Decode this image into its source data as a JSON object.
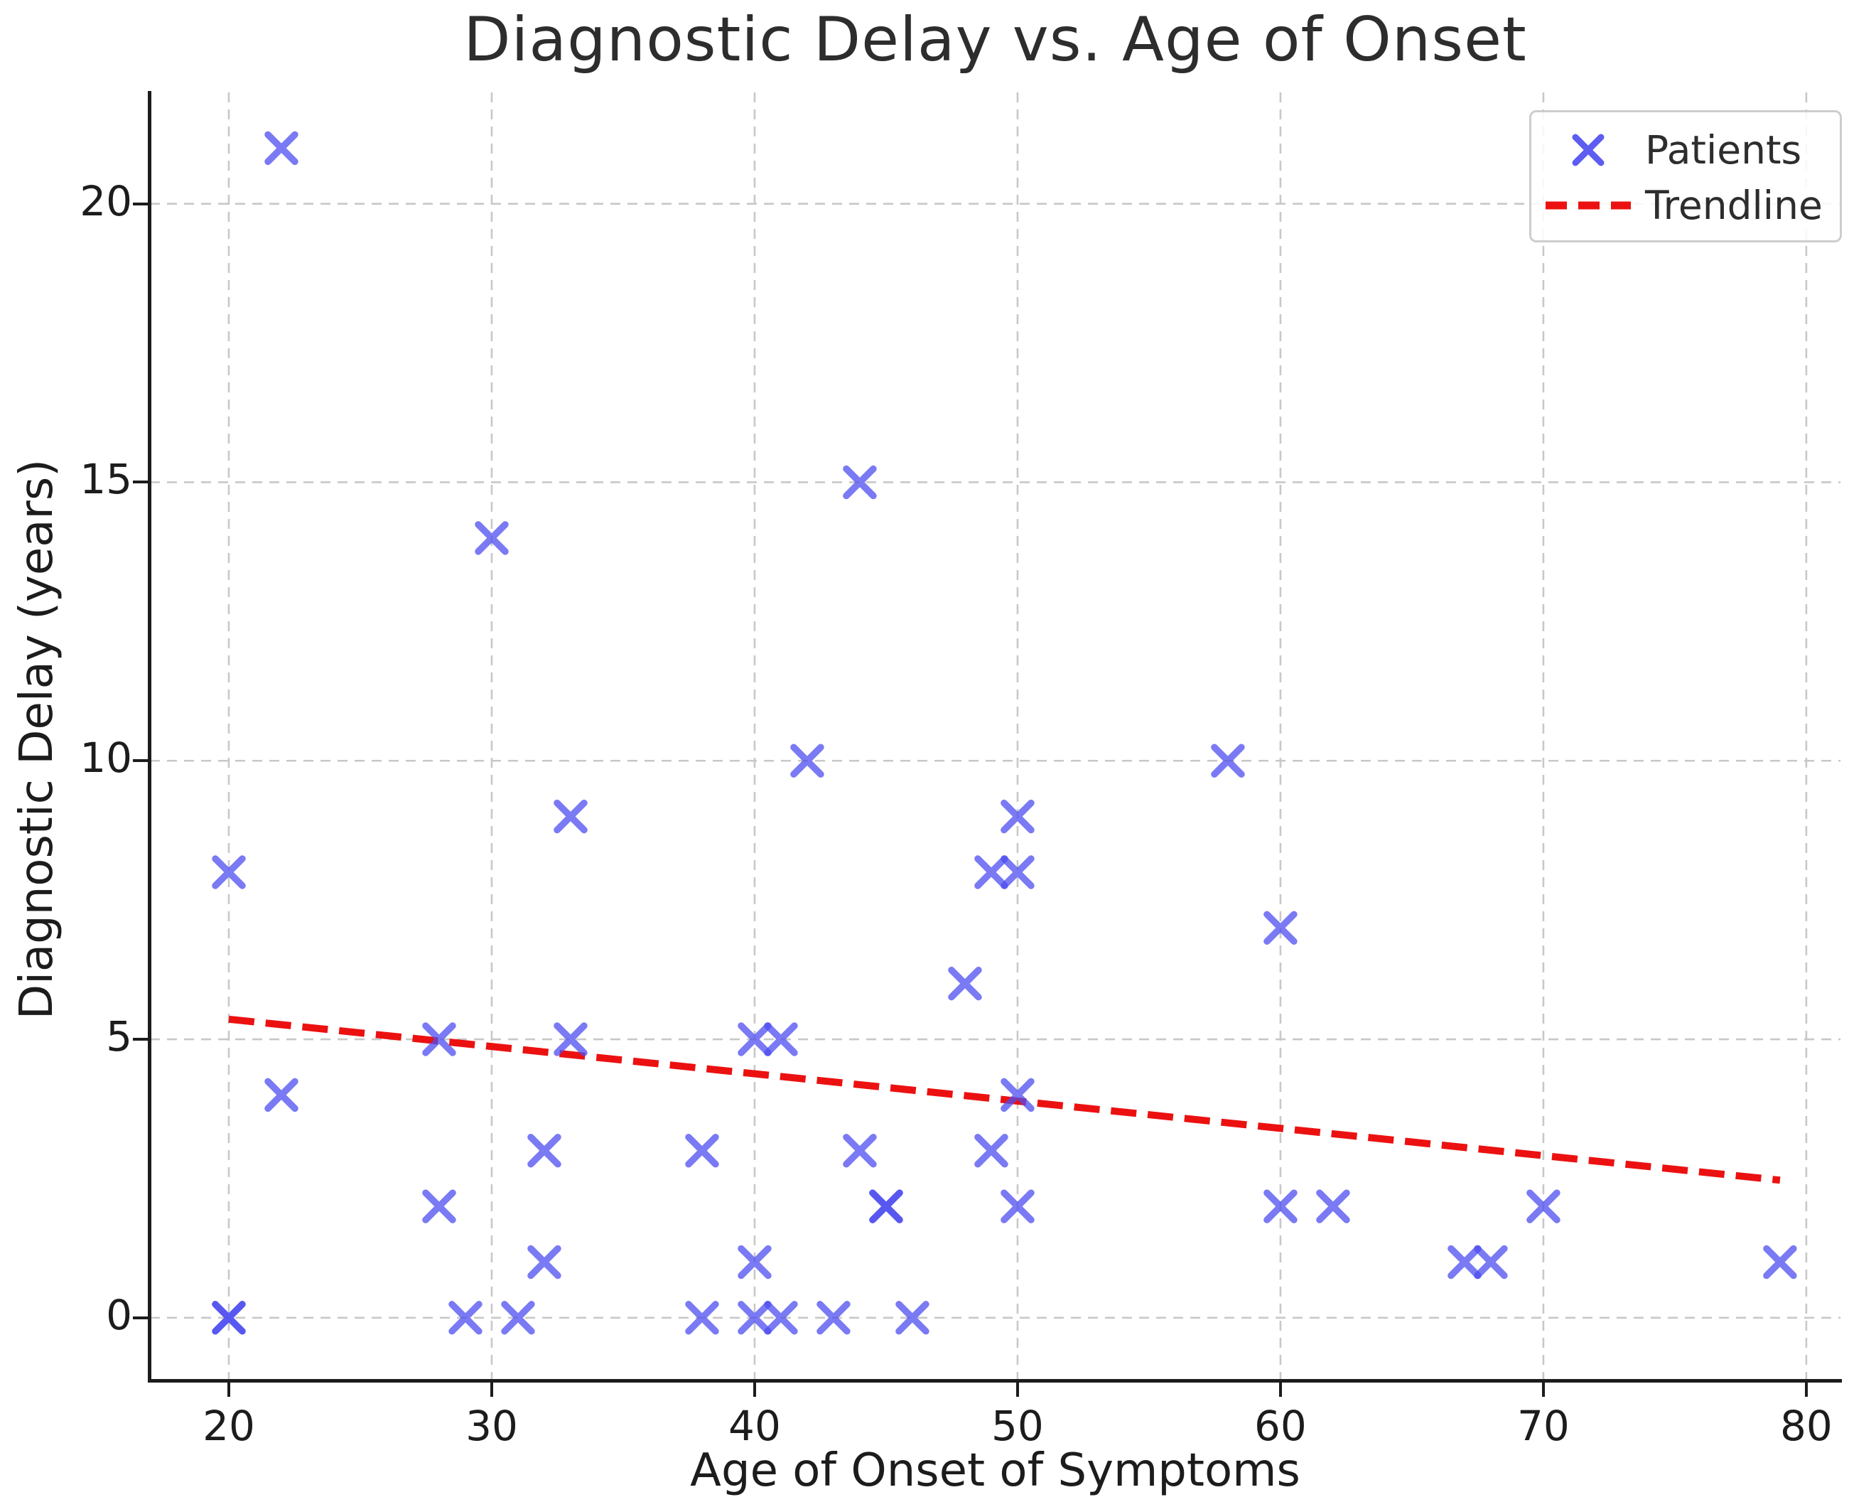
{
  "title": "Diagnostic Delay vs. Age of Onset",
  "axes": {
    "xlabel": "Age of Onset of Symptoms",
    "ylabel": "Diagnostic Delay (years)"
  },
  "legend": {
    "patients_label": "Patients",
    "trendline_label": "Trendline"
  },
  "colors": {
    "marker": "#4d4df0",
    "trendline": "#ec1111",
    "grid": "#c8c8c8",
    "spine": "#1c1c1c",
    "text": "#2d2d2d",
    "legend_border": "#cdcdcd"
  },
  "chart_data": {
    "type": "scatter",
    "title": "Diagnostic Delay vs. Age of Onset",
    "xlabel": "Age of Onset of Symptoms",
    "ylabel": "Diagnostic Delay (years)",
    "xlim": [
      17.0,
      81.3
    ],
    "ylim": [
      -1.1,
      22.0
    ],
    "xticks": [
      20,
      30,
      40,
      50,
      60,
      70,
      80
    ],
    "yticks": [
      0,
      5,
      10,
      15,
      20
    ],
    "grid": true,
    "legend_position": "upper right",
    "series": [
      {
        "name": "Patients",
        "type": "scatter",
        "marker": "x",
        "color": "#4d4df0",
        "opacity": 0.75,
        "points": [
          [
            20,
            0
          ],
          [
            20,
            0
          ],
          [
            20,
            8
          ],
          [
            22,
            4
          ],
          [
            22,
            21
          ],
          [
            28,
            2
          ],
          [
            28,
            5
          ],
          [
            29,
            0
          ],
          [
            30,
            14
          ],
          [
            31,
            0
          ],
          [
            32,
            1
          ],
          [
            32,
            3
          ],
          [
            33,
            5
          ],
          [
            33,
            9
          ],
          [
            38,
            0
          ],
          [
            38,
            3
          ],
          [
            40,
            0
          ],
          [
            40,
            1
          ],
          [
            40,
            5
          ],
          [
            41,
            0
          ],
          [
            41,
            5
          ],
          [
            42,
            10
          ],
          [
            43,
            0
          ],
          [
            44,
            3
          ],
          [
            44,
            15
          ],
          [
            45,
            2
          ],
          [
            45,
            2
          ],
          [
            46,
            0
          ],
          [
            48,
            6
          ],
          [
            49,
            3
          ],
          [
            49,
            8
          ],
          [
            50,
            2
          ],
          [
            50,
            4
          ],
          [
            50,
            8
          ],
          [
            50,
            9
          ],
          [
            58,
            10
          ],
          [
            60,
            2
          ],
          [
            60,
            7
          ],
          [
            62,
            2
          ],
          [
            67,
            1
          ],
          [
            68,
            1
          ],
          [
            70,
            2
          ],
          [
            79,
            1
          ]
        ]
      },
      {
        "name": "Trendline",
        "type": "line",
        "style": "dashed",
        "color": "#ec1111",
        "points": [
          [
            20,
            5.36
          ],
          [
            79,
            2.47
          ]
        ]
      }
    ]
  }
}
